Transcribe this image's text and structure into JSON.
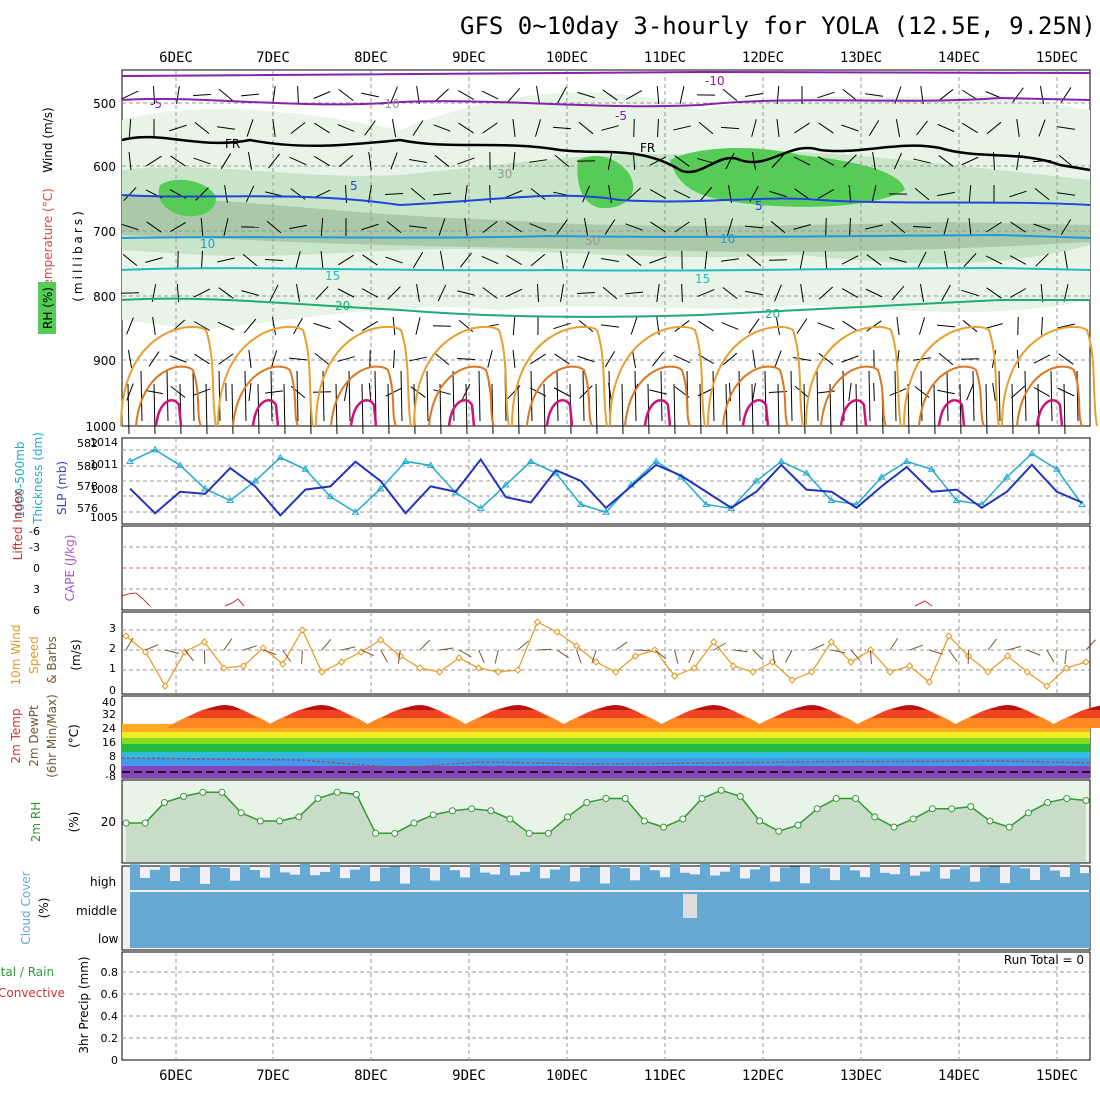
{
  "title": "GFS 0~10day 3-hourly for YOLA (12.5E, 9.25N)",
  "days": [
    "6DEC",
    "7DEC",
    "8DEC",
    "9DEC",
    "10DEC",
    "11DEC",
    "12DEC",
    "13DEC",
    "14DEC",
    "15DEC"
  ],
  "colors": {
    "grid": "#999999",
    "rh_fill": "#55cc55",
    "temp_label": "#dd4444",
    "thickness": "#2233bb",
    "slp": "#22aacc",
    "wind10m": "#e69922",
    "dewpt": "#999999",
    "rh2m": "#339933",
    "cloud": "#66aad4",
    "lifted": "#cc3333",
    "cape": "#aa55cc"
  },
  "panels": {
    "upper": {
      "ylabel_wind": "Wind (m/s)",
      "ylabel_temp": "Temperature (°C)",
      "ylabel_rh": "RH (%)",
      "ylabel_mb": "(millibars)",
      "ticks": [
        "500",
        "600",
        "700",
        "800",
        "900",
        "1000"
      ],
      "contour_labels": [
        "-10",
        "-5",
        "-5",
        "-10",
        "FR",
        "FR",
        "5",
        "5",
        "10",
        "10",
        "15",
        "15",
        "20",
        "20",
        "30",
        "50"
      ]
    },
    "thickness": {
      "ylabel1": "Thickness (dm)",
      "ylabel2": "1000-500mb",
      "ylabel3": "SLP (mb)",
      "left_ticks": [
        "582",
        "580",
        "578",
        "576"
      ],
      "right_ticks": [
        "1014",
        "1011",
        "1008",
        "1005"
      ]
    },
    "lifted": {
      "ylabel1": "Lifted Index",
      "ylabel2": "CAPE (J/kg)",
      "ticks": [
        "-6",
        "-3",
        "0",
        "3",
        "6"
      ]
    },
    "wind10m": {
      "ylabel1": "10m Wind",
      "ylabel2": "Speed",
      "ylabel3": "& Barbs",
      "ylabel4": "(m/s)",
      "ticks": [
        "3",
        "2",
        "1",
        "0"
      ]
    },
    "temp2m": {
      "ylabel1": "2m Temp",
      "ylabel2": "2m DewPt",
      "ylabel3": "(6hr Min/Max)",
      "ylabel4": "(°C)",
      "ticks": [
        "40",
        "32",
        "24",
        "16",
        "8",
        "0",
        "-8"
      ]
    },
    "rh2m": {
      "ylabel1": "2m RH",
      "ylabel2": "(%)",
      "ticks": [
        "20"
      ]
    },
    "cloud": {
      "ylabel1": "Cloud Cover",
      "ylabel2": "(%)",
      "levels": [
        "high",
        "middle",
        "low"
      ]
    },
    "precip": {
      "ylabel1": "Total / Rain",
      "ylabel2": "Convective",
      "ylabel3": "3hr Precip (mm)",
      "ticks": [
        "0.8",
        "0.6",
        "0.4",
        "0.2",
        "0"
      ],
      "run_total": "Run Total = 0"
    }
  },
  "chart_data": [
    {
      "type": "line",
      "title": "1000-500mb Thickness (dm) / SLP (mb)",
      "x": [
        "5DEC18",
        "6DEC00",
        "6DEC06",
        "6DEC12",
        "6DEC18",
        "7DEC00",
        "7DEC06",
        "7DEC12",
        "7DEC18",
        "8DEC00",
        "8DEC06",
        "8DEC12",
        "8DEC18",
        "9DEC00",
        "9DEC06",
        "9DEC12",
        "9DEC18",
        "10DEC00",
        "10DEC06",
        "10DEC12",
        "10DEC18",
        "11DEC00",
        "11DEC06",
        "11DEC12",
        "11DEC18",
        "12DEC00",
        "12DEC06",
        "12DEC12",
        "12DEC18",
        "13DEC00",
        "13DEC06",
        "13DEC12",
        "13DEC18",
        "14DEC00",
        "14DEC06",
        "14DEC12",
        "14DEC18",
        "15DEC00",
        "15DEC06"
      ],
      "series": [
        {
          "name": "Thickness",
          "values": [
            578.3,
            576.0,
            578.0,
            577.8,
            580.2,
            578.5,
            575.8,
            578.2,
            578.5,
            580.8,
            579.0,
            576.0,
            578.5,
            578.0,
            581.0,
            577.5,
            577.0,
            580.0,
            579.0,
            576.5,
            578.5,
            580.5,
            579.5,
            578.0,
            576.5,
            578.0,
            580.5,
            578.2,
            578.0,
            576.5,
            578.5,
            580.3,
            578.0,
            578.2,
            576.5,
            578.0,
            580.5,
            578.0,
            577.0
          ]
        },
        {
          "name": "SLP",
          "values": [
            1012.0,
            1013.5,
            1011.5,
            1008.5,
            1007.0,
            1009.5,
            1012.5,
            1011.0,
            1007.5,
            1005.5,
            1008.5,
            1012.0,
            1011.5,
            1008.0,
            1006.0,
            1009.0,
            1012.0,
            1010.5,
            1006.5,
            1005.5,
            1009.0,
            1012.0,
            1010.0,
            1006.5,
            1006.0,
            1009.5,
            1012.0,
            1010.5,
            1007.0,
            1006.5,
            1010.0,
            1012.0,
            1011.0,
            1007.0,
            1006.5,
            1010.0,
            1013.0,
            1011.0,
            1006.5
          ]
        }
      ],
      "ylim_thickness": [
        575,
        583
      ],
      "ylim_slp": [
        1004,
        1015
      ]
    },
    {
      "type": "line",
      "title": "10m Wind Speed (m/s)",
      "series": [
        {
          "name": "Speed",
          "values": [
            2.8,
            2.0,
            0.3,
            2.0,
            2.5,
            1.2,
            1.3,
            2.2,
            1.4,
            3.1,
            1.0,
            1.5,
            2.0,
            2.6,
            1.8,
            1.2,
            1.0,
            1.7,
            1.2,
            1.0,
            1.1,
            3.5,
            3.0,
            2.3,
            1.5,
            1.0,
            1.8,
            2.1,
            0.8,
            1.2,
            2.5,
            1.3,
            1.0,
            1.5,
            0.6,
            1.0,
            2.5,
            1.5,
            2.1,
            1.0,
            1.3,
            0.5,
            2.8,
            1.8,
            1.0,
            1.8,
            1.0,
            0.3,
            1.2,
            1.5
          ]
        }
      ],
      "ylim": [
        0,
        4
      ]
    },
    {
      "type": "area",
      "title": "2m RH (%)",
      "series": [
        {
          "name": "RH",
          "values": [
            19,
            19,
            29,
            32,
            34,
            34,
            24,
            20,
            20,
            22,
            31,
            34,
            33,
            14,
            14,
            19,
            23,
            25,
            26,
            25,
            21,
            14,
            14,
            22,
            29,
            31,
            31,
            20,
            17,
            21,
            31,
            35,
            32,
            20,
            15,
            18,
            26,
            31,
            31,
            22,
            17,
            21,
            26,
            26,
            27,
            20,
            17,
            24,
            29,
            31,
            30
          ]
        }
      ],
      "ylim": [
        0,
        40
      ]
    }
  ]
}
